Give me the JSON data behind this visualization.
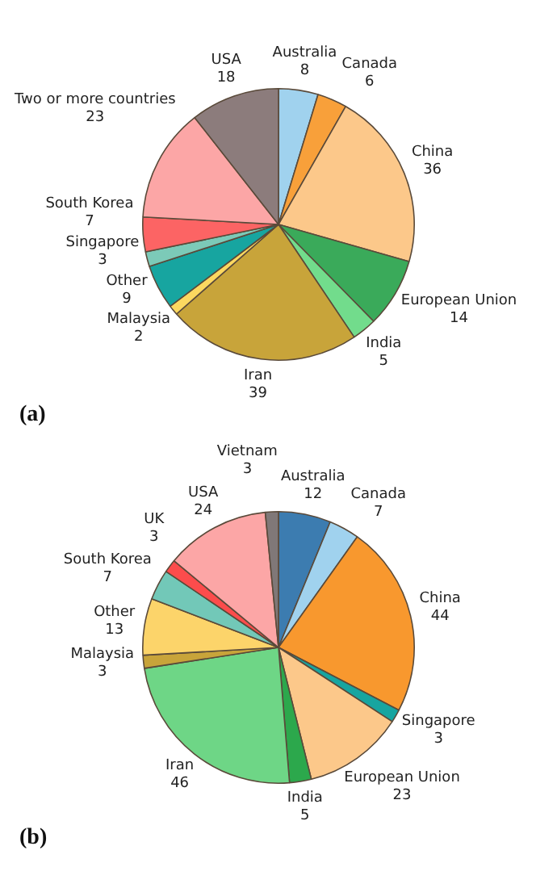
{
  "chart_data": [
    {
      "type": "pie",
      "categories": [
        "Australia",
        "Canada",
        "China",
        "European Union",
        "India",
        "Iran",
        "Malaysia",
        "Other",
        "Singapore",
        "South Korea",
        "Two or more countries",
        "USA"
      ],
      "values": [
        8,
        6,
        36,
        14,
        5,
        39,
        2,
        9,
        3,
        7,
        23,
        18
      ],
      "colors": [
        "#a0d2ee",
        "#f8a03a",
        "#fcc88a",
        "#3aaa5a",
        "#72dc8c",
        "#c8a43a",
        "#fcd860",
        "#17a5a0",
        "#7ccab8",
        "#fc6464",
        "#fca6a6",
        "#8c7c7c"
      ],
      "data_labels": true,
      "annotations": [
        "(a)"
      ]
    },
    {
      "type": "pie",
      "categories": [
        "Australia",
        "Canada",
        "China",
        "Singapore",
        "European Union",
        "India",
        "Iran",
        "Malaysia",
        "Other",
        "South Korea",
        "UK",
        "USA",
        "Vietnam"
      ],
      "values": [
        12,
        7,
        44,
        3,
        23,
        5,
        46,
        3,
        13,
        7,
        3,
        24,
        3
      ],
      "colors": [
        "#3c7cb0",
        "#a0d2ee",
        "#f8982e",
        "#17a5a0",
        "#fcc88a",
        "#2ca84c",
        "#6ed686",
        "#c8a43a",
        "#fcd46a",
        "#72c8b8",
        "#fc4c4c",
        "#fca6a6",
        "#807878"
      ],
      "data_labels": true,
      "annotations": [
        "(b)"
      ]
    }
  ]
}
